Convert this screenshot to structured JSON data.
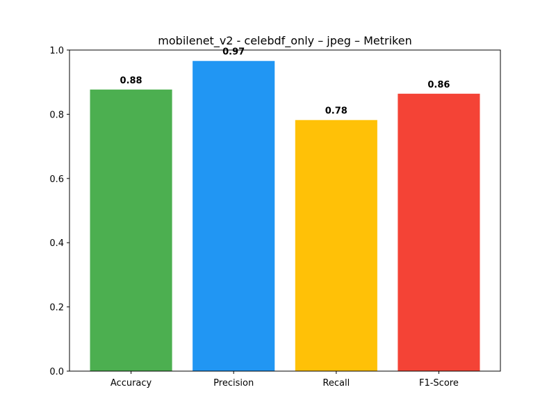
{
  "chart_data": {
    "type": "bar",
    "title": "mobilenet_v2 - celebdf_only – jpeg – Metriken",
    "xlabel": "",
    "ylabel": "",
    "categories": [
      "Accuracy",
      "Precision",
      "Recall",
      "F1-Score"
    ],
    "values": [
      0.877,
      0.966,
      0.782,
      0.864
    ],
    "value_labels": [
      "0.88",
      "0.97",
      "0.78",
      "0.86"
    ],
    "colors": [
      "#4caf50",
      "#2196f3",
      "#ffc107",
      "#f44336"
    ],
    "ylim": [
      0,
      1.0
    ],
    "yticks": [
      0.0,
      0.2,
      0.4,
      0.6,
      0.8,
      1.0
    ],
    "ytick_labels": [
      "0.0",
      "0.2",
      "0.4",
      "0.6",
      "0.8",
      "1.0"
    ],
    "grid": false,
    "legend": "none"
  }
}
